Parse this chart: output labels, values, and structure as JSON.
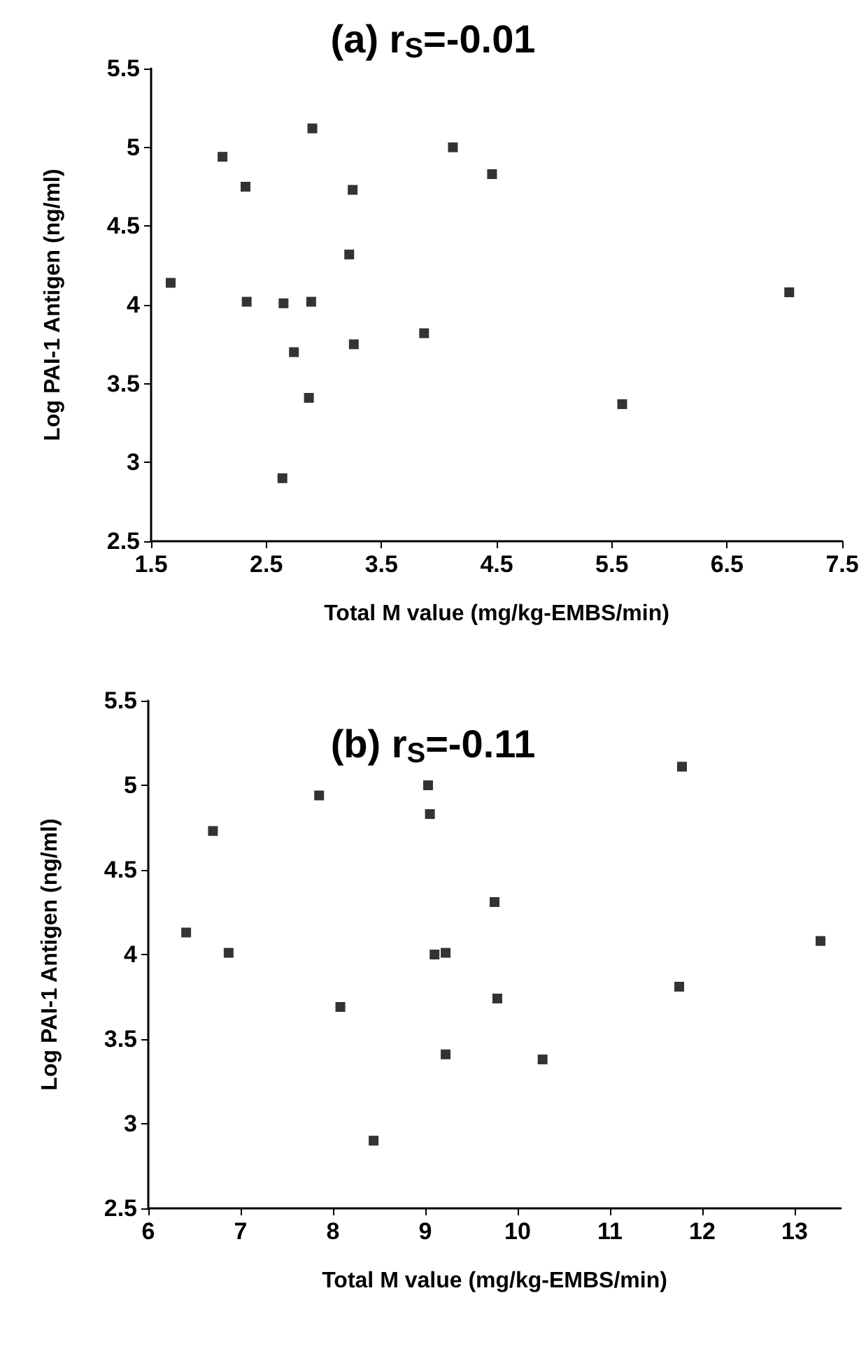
{
  "chart_data": [
    {
      "type": "scatter",
      "title": "(a) r$_{S}$=-0.01",
      "xlabel": "Total M value (mg/kg-EMBS/min)",
      "ylabel": "Log PAI-1 Antigen (ng/ml)",
      "marker": "square",
      "grid": false,
      "x": [
        1.67,
        2.12,
        2.9,
        2.32,
        3.25,
        4.12,
        4.46,
        3.22,
        2.33,
        2.65,
        2.89,
        7.04,
        2.74,
        3.26,
        3.87,
        2.87,
        5.59,
        2.64
      ],
      "series": [
        {
          "color": "#000000",
          "values": [
            4.14,
            4.94,
            5.12,
            4.75,
            4.73,
            5.0,
            4.83,
            4.32,
            4.02,
            4.01,
            4.02,
            4.08,
            3.7,
            3.75,
            3.82,
            3.41,
            3.37,
            2.9
          ]
        }
      ],
      "xlim": [
        1.5,
        7.5
      ],
      "xticks": [
        1.5,
        2.5,
        3.5,
        4.5,
        5.5,
        6.5,
        7.5
      ],
      "ylim": [
        2.5,
        5.5
      ],
      "yticks": [
        2.5,
        3,
        3.5,
        4,
        4.5,
        5,
        5.5
      ]
    },
    {
      "type": "scatter",
      "title": "(b) r$_{S}$=-0.11",
      "xlabel": "Total M value (mg/kg-EMBS/min)",
      "ylabel": "Log PAI-1 Antigen (ng/ml)",
      "marker": "square",
      "grid": false,
      "x": [
        6.41,
        6.7,
        6.87,
        7.85,
        8.08,
        8.44,
        9.03,
        9.05,
        9.1,
        9.22,
        9.22,
        9.75,
        9.78,
        10.27,
        11.78,
        11.75,
        13.28
      ],
      "series": [
        {
          "color": "#000000",
          "values": [
            4.13,
            4.73,
            4.01,
            4.94,
            3.69,
            2.9,
            5.0,
            4.83,
            4.0,
            4.01,
            3.41,
            4.31,
            3.74,
            3.38,
            5.11,
            3.81,
            4.08
          ]
        }
      ],
      "xlim": [
        6,
        13.5
      ],
      "xticks": [
        6,
        7,
        8,
        9,
        10,
        11,
        12,
        13
      ],
      "ylim": [
        2.5,
        5.5
      ],
      "yticks": [
        2.5,
        3,
        3.5,
        4,
        4.5,
        5,
        5.5
      ]
    }
  ]
}
